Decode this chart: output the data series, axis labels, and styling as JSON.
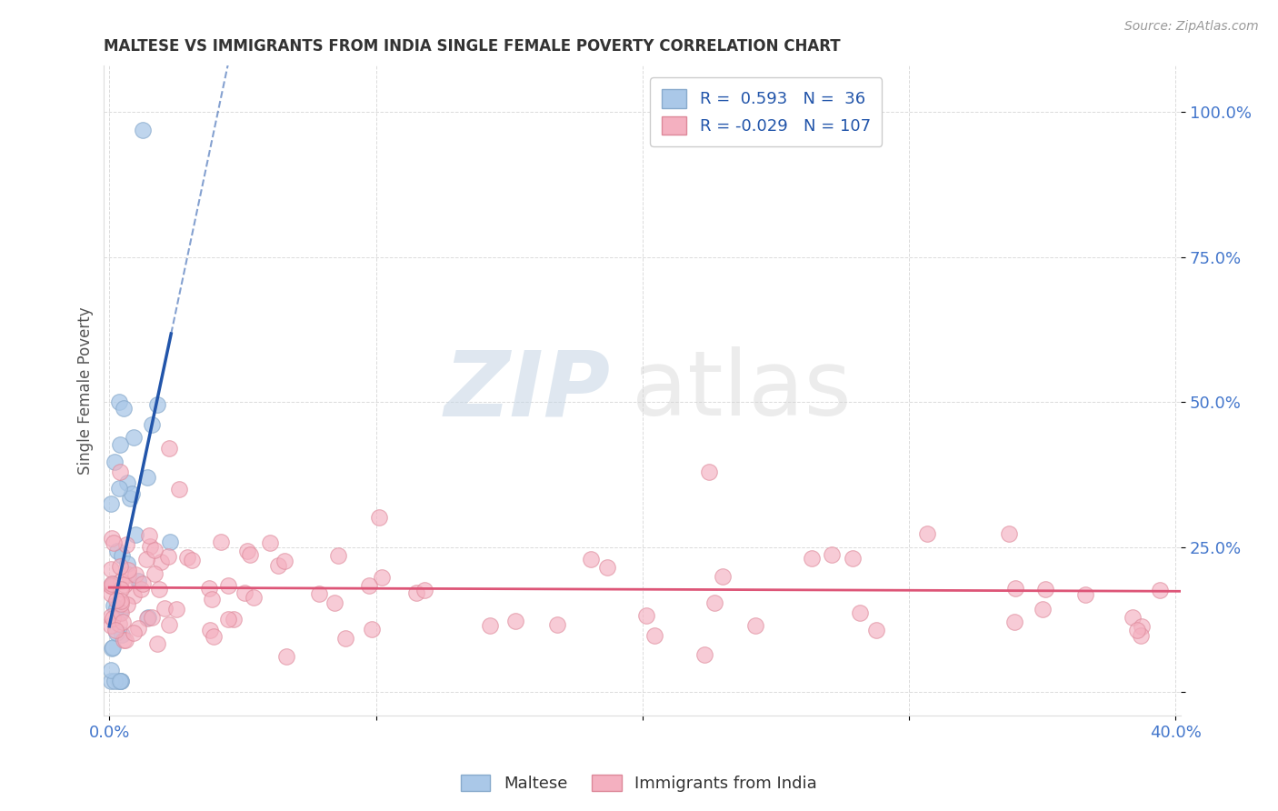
{
  "title": "MALTESE VS IMMIGRANTS FROM INDIA SINGLE FEMALE POVERTY CORRELATION CHART",
  "source": "Source: ZipAtlas.com",
  "ylabel": "Single Female Poverty",
  "xlim": [
    -0.002,
    0.402
  ],
  "ylim": [
    -0.04,
    1.08
  ],
  "yticks": [
    0.0,
    0.25,
    0.5,
    0.75,
    1.0
  ],
  "ytick_labels": [
    "",
    "25.0%",
    "50.0%",
    "75.0%",
    "100.0%"
  ],
  "xtick_left_label": "0.0%",
  "xtick_right_label": "40.0%",
  "blue_R": 0.593,
  "blue_N": 36,
  "pink_R": -0.029,
  "pink_N": 107,
  "blue_label": "Maltese",
  "pink_label": "Immigrants from India",
  "watermark_zip": "ZIP",
  "watermark_atlas": "atlas",
  "background_color": "#ffffff",
  "grid_color": "#cccccc",
  "title_color": "#333333",
  "axis_label_color": "#555555",
  "tick_color": "#4477cc",
  "blue_dot_color": "#aac8e8",
  "pink_dot_color": "#f4b0c0",
  "blue_line_color": "#2255aa",
  "pink_line_color": "#dd5577",
  "blue_dot_edge": "#88aacc",
  "pink_dot_edge": "#dd8899",
  "legend_color": "#2255aa"
}
